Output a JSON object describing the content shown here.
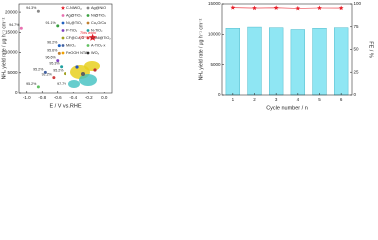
{
  "chart_data": [
    {
      "type": "scatter",
      "xlabel": "E / V vs.RHE",
      "ylabel": "NH₃ yield rate / μg h⁻¹ cm⁻²",
      "xlim": [
        -1.1,
        0.1
      ],
      "xticks": [
        {
          "value": -1,
          "label": "-1.0"
        },
        -0.8,
        -0.6,
        -0.4,
        -0.2,
        {
          "value": 0,
          "label": "0.0"
        }
      ],
      "ylim": [
        0,
        22000
      ],
      "yticks": [
        0,
        5000,
        10000,
        15000,
        20000
      ],
      "annotation": [
        "This work",
        "FE=97.0%"
      ],
      "series": [
        {
          "name": "C-NiWO₄",
          "color": "#e8202a",
          "marker": "star",
          "x": [
            -0.15
          ],
          "values": [
            13700
          ],
          "labels": [
            null
          ]
        },
        {
          "name": "Ag@NiO",
          "color": "#888888",
          "marker": "circle",
          "x": [
            -0.85
          ],
          "values": [
            20200
          ],
          "labels": [
            "94.3%"
          ]
        },
        {
          "name": "Ag@TiO₂",
          "color": "#e870b0",
          "marker": "circle",
          "x": [
            -1.07
          ],
          "values": [
            16000
          ],
          "labels": [
            "94.7%"
          ]
        },
        {
          "name": "Ni@TiO₂",
          "color": "#3aa040",
          "marker": "circle",
          "x": [
            -0.6
          ],
          "values": [
            16600
          ],
          "labels": [
            "91.1%"
          ]
        },
        {
          "name": "Ni₂@TiO₂",
          "color": "#2060c0",
          "marker": "circle",
          "x": [
            -0.58
          ],
          "values": [
            11700
          ],
          "labels": [
            "96.2%"
          ]
        },
        {
          "name": "Cu₂O/Cu",
          "color": "#c08030",
          "marker": "circle",
          "x": [
            -0.58
          ],
          "values": [
            9800
          ],
          "labels": [
            "95.6%"
          ]
        },
        {
          "name": "P-TiO₂",
          "color": "#8040c0",
          "marker": "circle",
          "x": [
            -0.6
          ],
          "values": [
            8000
          ],
          "labels": [
            "96.6%"
          ]
        },
        {
          "name": "N-TiO₂",
          "color": "#20a0a0",
          "marker": "circle",
          "x": [
            -0.55
          ],
          "values": [
            6500
          ],
          "labels": [
            "95.3%"
          ]
        },
        {
          "name": "CF@Cu₂O",
          "color": "#a0a020",
          "marker": "circle",
          "x": [
            -0.5
          ],
          "values": [
            4800
          ],
          "labels": [
            "95.2%"
          ]
        },
        {
          "name": "CoNi@TiO₂",
          "color": "#d04040",
          "marker": "circle",
          "x": [
            -0.65
          ],
          "values": [
            3800
          ],
          "labels": [
            "92.2%"
          ]
        },
        {
          "name": "MnO₂",
          "color": "#4060a0",
          "marker": "circle",
          "x": [
            -0.76
          ],
          "values": [
            5100
          ],
          "labels": [
            "95.2%"
          ]
        },
        {
          "name": "A-TiO₂-x",
          "color": "#60c060",
          "marker": "circle",
          "x": [
            -0.85
          ],
          "values": [
            1500
          ],
          "labels": [
            "95.2%"
          ]
        },
        {
          "name": "FeOOH NTA",
          "color": "#f0a000",
          "marker": "circle",
          "x": [
            -0.45
          ],
          "values": [
            1500
          ],
          "labels": [
            "97.7%"
          ]
        },
        {
          "name": "WO₃",
          "color": "#303030",
          "marker": "circle",
          "x": [
            -0.35
          ],
          "values": [
            1000
          ],
          "labels": [
            null
          ]
        }
      ]
    },
    {
      "type": "bar",
      "xlabel": "Cycle number / n",
      "ylabel": "NH₃ yield rate / μg h⁻¹ cm⁻²",
      "y2label": "FE / %",
      "categories": [
        "1",
        "2",
        "3",
        "4",
        "5",
        "6"
      ],
      "ylim": [
        0,
        15000
      ],
      "yticks": [
        0,
        5000,
        10000,
        15000
      ],
      "y2lim": [
        0,
        100
      ],
      "y2ticks": [
        0,
        25,
        50,
        75,
        100
      ],
      "series": [
        {
          "name": "NH₃ yield rate",
          "color": "#8fe6f3",
          "values": [
            11000,
            11200,
            11100,
            10800,
            11000,
            11100
          ]
        },
        {
          "name": "FE",
          "color": "#e8202a",
          "axis": "y2",
          "values": [
            96,
            95.5,
            95.8,
            95.2,
            95.6,
            95.5
          ]
        }
      ]
    }
  ]
}
